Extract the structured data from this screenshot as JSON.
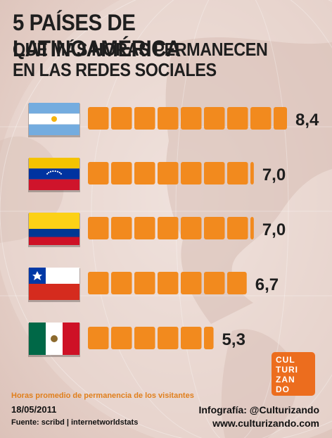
{
  "title": {
    "line1": "5 PAÍSES DE LATINOAMÉRICA",
    "line2": "QUE MÁS HORAS PERMANECEN",
    "line3": "EN LAS REDES SOCIALES"
  },
  "colors": {
    "bar": "#f28a1e",
    "text": "#1e1e1e",
    "caption": "#e07f1c",
    "logo": "#ec6d1e"
  },
  "chart_data": {
    "type": "bar",
    "orientation": "horizontal",
    "categories": [
      "Argentina",
      "Venezuela",
      "Colombia",
      "Chile",
      "México"
    ],
    "values": [
      8.4,
      7.0,
      7.0,
      6.7,
      5.3
    ],
    "value_labels": [
      "8,4",
      "7,0",
      "7,0",
      "6,7",
      "5,3"
    ],
    "xlim": [
      0,
      8.4
    ],
    "grid": false,
    "legend": "none"
  },
  "footer": {
    "caption": "Horas promedio de permanencia de los visitantes",
    "date": "18/05/2011",
    "source": "Fuente: scribd | internetworldstats",
    "credit": "Infografía: @Culturizando",
    "site": "www.culturizando.com"
  },
  "logo": {
    "lines": [
      "CUL",
      "TURI",
      "ZAN",
      "DO"
    ]
  }
}
